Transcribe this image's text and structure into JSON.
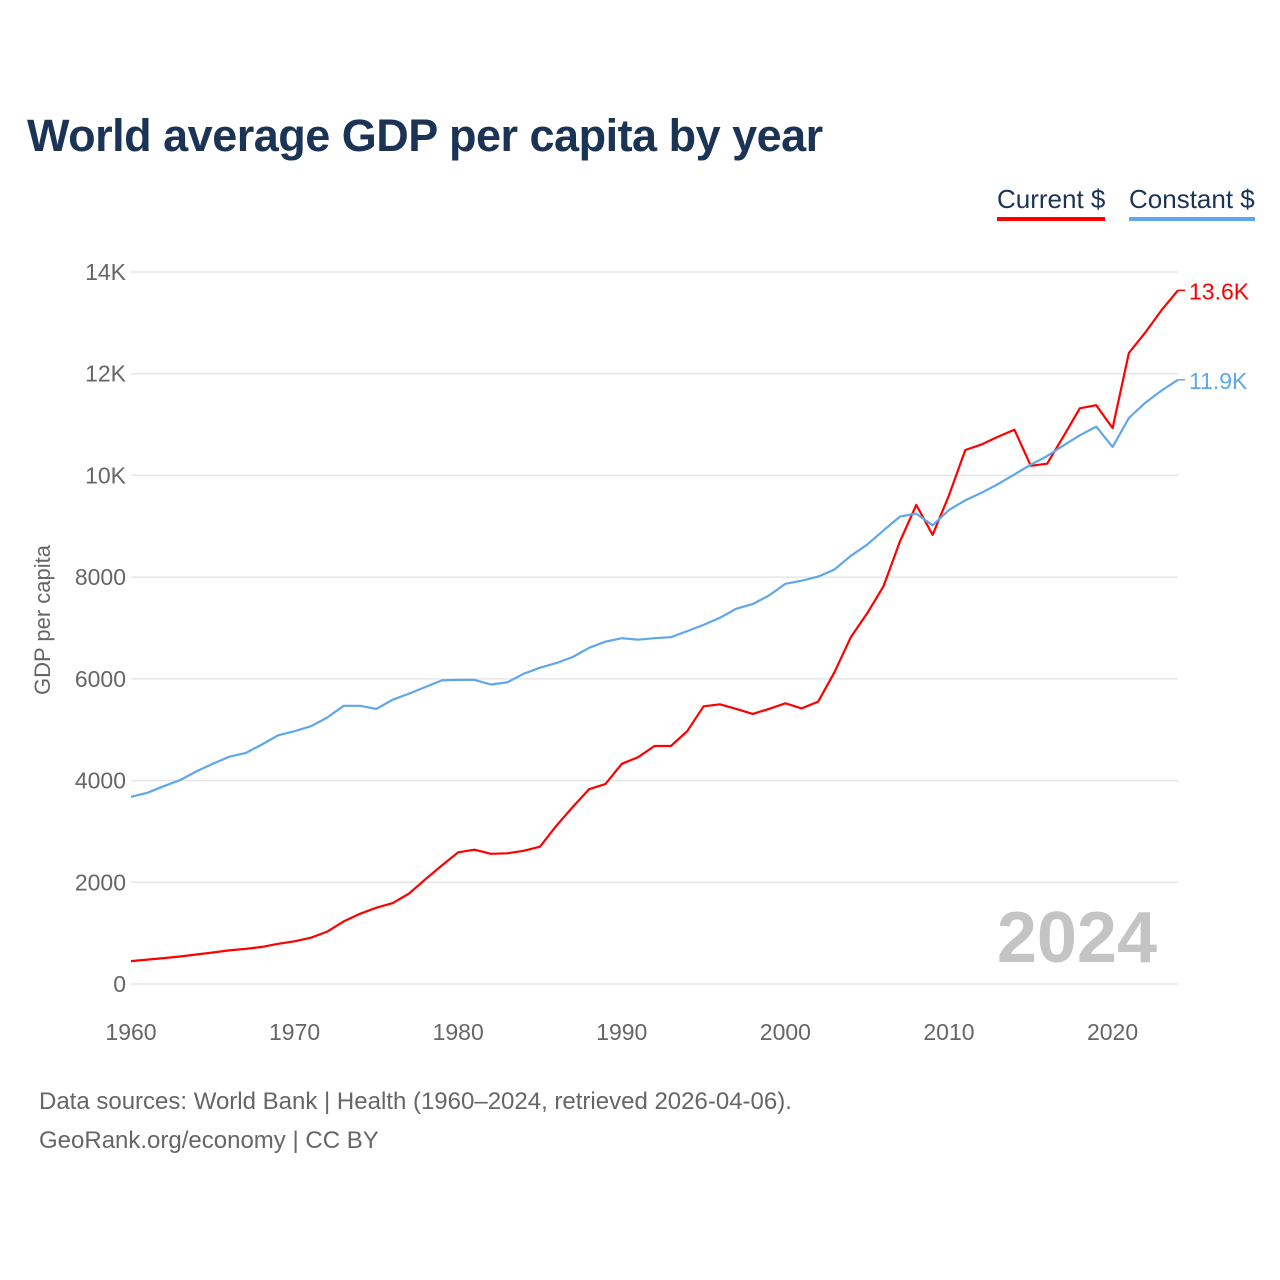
{
  "chart_data": {
    "type": "line",
    "title": "World average GDP per capita by year",
    "xlabel": "",
    "ylabel": "GDP per capita",
    "xlim": [
      1960,
      2024
    ],
    "ylim": [
      0,
      14000
    ],
    "grid": true,
    "legend_position": "top-right",
    "x_ticks": [
      "1960",
      "1970",
      "1980",
      "1990",
      "2000",
      "2010",
      "2020"
    ],
    "y_ticks": [
      {
        "value": 0,
        "label": "0"
      },
      {
        "value": 2000,
        "label": "2000"
      },
      {
        "value": 4000,
        "label": "4000"
      },
      {
        "value": 6000,
        "label": "6000"
      },
      {
        "value": 8000,
        "label": "8000"
      },
      {
        "value": 10000,
        "label": "10K"
      },
      {
        "value": 12000,
        "label": "12K"
      },
      {
        "value": 14000,
        "label": "14K"
      }
    ],
    "watermark_year": "2024",
    "x": [
      1960,
      1961,
      1962,
      1963,
      1964,
      1965,
      1966,
      1967,
      1968,
      1969,
      1970,
      1971,
      1972,
      1973,
      1974,
      1975,
      1976,
      1977,
      1978,
      1979,
      1980,
      1981,
      1982,
      1983,
      1984,
      1985,
      1986,
      1987,
      1988,
      1989,
      1990,
      1991,
      1992,
      1993,
      1994,
      1995,
      1996,
      1997,
      1998,
      1999,
      2000,
      2001,
      2002,
      2003,
      2004,
      2005,
      2006,
      2007,
      2008,
      2009,
      2010,
      2011,
      2012,
      2013,
      2014,
      2015,
      2016,
      2017,
      2018,
      2019,
      2020,
      2021,
      2022,
      2023,
      2024
    ],
    "series": [
      {
        "name": "Current $",
        "color": "#ff0000",
        "end_label": "13.6K",
        "values": [
          450,
          480,
          510,
          540,
          580,
          620,
          660,
          690,
          730,
          790,
          840,
          910,
          1030,
          1230,
          1380,
          1500,
          1590,
          1780,
          2060,
          2330,
          2590,
          2640,
          2560,
          2570,
          2620,
          2700,
          3110,
          3480,
          3830,
          3930,
          4330,
          4460,
          4680,
          4680,
          4970,
          5460,
          5500,
          5410,
          5310,
          5410,
          5520,
          5420,
          5550,
          6130,
          6820,
          7290,
          7820,
          8700,
          9420,
          8830,
          9610,
          10500,
          10610,
          10760,
          10900,
          10190,
          10230,
          10770,
          11320,
          11380,
          10930,
          12410,
          12810,
          13250,
          13640
        ]
      },
      {
        "name": "Constant $",
        "color": "#5ea7eb",
        "end_label": "11.9K",
        "values": [
          3680,
          3760,
          3890,
          4010,
          4180,
          4330,
          4470,
          4540,
          4710,
          4890,
          4970,
          5070,
          5240,
          5470,
          5470,
          5410,
          5590,
          5710,
          5840,
          5970,
          5980,
          5980,
          5890,
          5930,
          6100,
          6220,
          6310,
          6430,
          6610,
          6730,
          6800,
          6770,
          6800,
          6820,
          6940,
          7060,
          7200,
          7380,
          7470,
          7640,
          7870,
          7930,
          8010,
          8150,
          8420,
          8640,
          8920,
          9190,
          9250,
          9020,
          9320,
          9510,
          9660,
          9830,
          10020,
          10210,
          10380,
          10590,
          10790,
          10960,
          10560,
          11130,
          11430,
          11670,
          11880
        ]
      }
    ]
  },
  "footer": {
    "sources": "Data sources: World Bank | Health (1960–2024, retrieved 2026-04-06).",
    "credit": "GeoRank.org/economy | CC BY"
  }
}
